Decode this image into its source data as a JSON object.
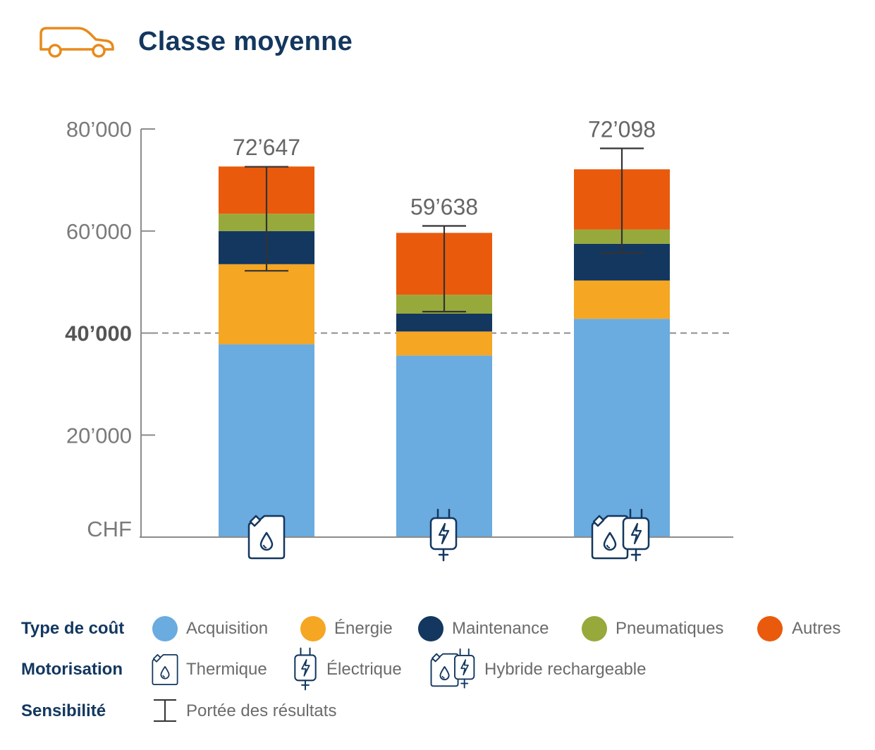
{
  "title": "Classe moyenne",
  "colors": {
    "title": "#13375f",
    "acquisition": "#6aabe0",
    "energie": "#f5a623",
    "maintenance": "#13375f",
    "pneumatiques": "#97a93b",
    "autres": "#e95a0c",
    "car_icon": "#e88a1a",
    "axis_text": "#7a7a7a",
    "label_text": "#666666"
  },
  "chart_data": {
    "type": "bar",
    "stacked": true,
    "ylabel": "CHF",
    "ylim": [
      0,
      80000
    ],
    "yticks": [
      {
        "value": 20000,
        "label": "20’000",
        "bold": false
      },
      {
        "value": 40000,
        "label": "40’000",
        "bold": true
      },
      {
        "value": 60000,
        "label": "60’000",
        "bold": false
      },
      {
        "value": 80000,
        "label": "80’000",
        "bold": false
      }
    ],
    "reference_line": 40000,
    "categories": [
      "Thermique",
      "Électrique",
      "Hybride rechargeable"
    ],
    "category_icons": [
      "jerrycan-icon",
      "plug-icon",
      "hybrid-icon"
    ],
    "series": [
      {
        "name": "Acquisition",
        "color": "#6aabe0",
        "values": [
          37800,
          35600,
          42800
        ]
      },
      {
        "name": "Énergie",
        "color": "#f5a623",
        "values": [
          15700,
          4700,
          7500
        ]
      },
      {
        "name": "Maintenance",
        "color": "#13375f",
        "values": [
          6500,
          3500,
          7200
        ]
      },
      {
        "name": "Pneumatiques",
        "color": "#97a93b",
        "values": [
          3400,
          3700,
          2800
        ]
      },
      {
        "name": "Autres",
        "color": "#e95a0c",
        "values": [
          9247,
          12138,
          11798
        ]
      }
    ],
    "totals": [
      72647,
      59638,
      72098
    ],
    "total_labels": [
      "72’647",
      "59’638",
      "72’098"
    ],
    "ranges": [
      [
        52200,
        72600
      ],
      [
        44200,
        61000
      ],
      [
        55700,
        76200
      ]
    ]
  },
  "legend": {
    "cost_type_label": "Type de coût",
    "motorisation_label": "Motorisation",
    "sensitivity_label": "Sensibilité",
    "cost_items": [
      "Acquisition",
      "Énergie",
      "Maintenance",
      "Pneumatiques",
      "Autres"
    ],
    "motor_items": [
      "Thermique",
      "Électrique",
      "Hybride rechargeable"
    ],
    "sensitivity_item": "Portée des résultats"
  }
}
